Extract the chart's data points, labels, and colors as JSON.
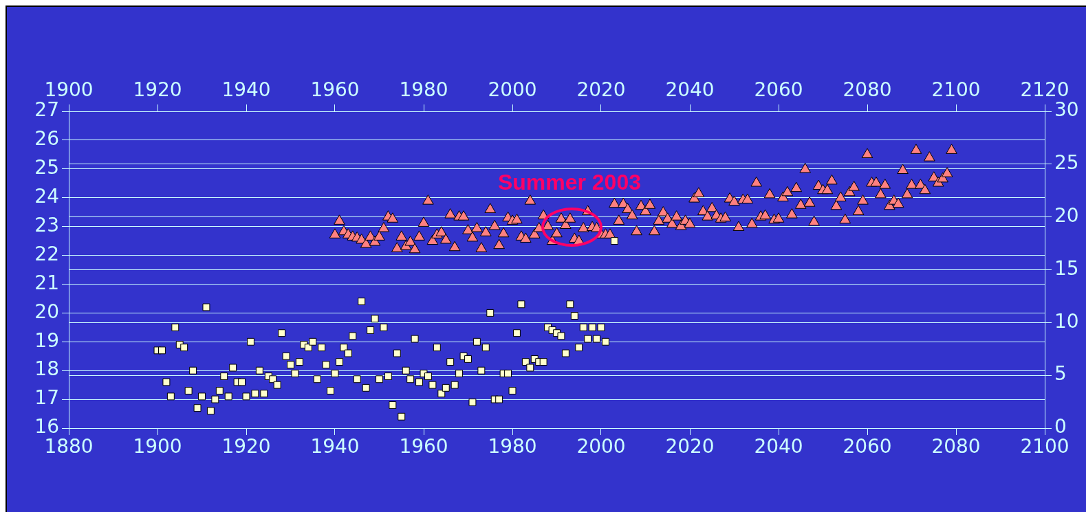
{
  "chart_data": {
    "type": "scatter",
    "annotations": [
      "Summer 2003"
    ],
    "grid": "y",
    "legend": false,
    "xlim": [
      1880,
      2100
    ],
    "xticks": [
      1880,
      1900,
      1920,
      1940,
      1960,
      1980,
      2000,
      2020,
      2040,
      2060,
      2080,
      2100
    ],
    "x2lim": [
      1900,
      2120
    ],
    "x2ticks": [
      1900,
      1920,
      1940,
      1960,
      1980,
      2000,
      2020,
      2040,
      2060,
      2080,
      2100,
      2120
    ],
    "ylim": [
      16,
      27
    ],
    "yticks": [
      16,
      17,
      18,
      19,
      20,
      21,
      22,
      23,
      24,
      25,
      26,
      27
    ],
    "y2lim": [
      0,
      30
    ],
    "y2ticks": [
      0,
      5,
      10,
      15,
      20,
      25,
      30
    ],
    "series": [
      {
        "color": "#ffffcc",
        "marker": "square",
        "x": [
          1900,
          1901,
          1902,
          1903,
          1904,
          1905,
          1906,
          1907,
          1908,
          1909,
          1910,
          1911,
          1912,
          1913,
          1914,
          1915,
          1916,
          1917,
          1918,
          1919,
          1920,
          1921,
          1922,
          1923,
          1924,
          1925,
          1926,
          1927,
          1928,
          1929,
          1930,
          1931,
          1932,
          1933,
          1934,
          1935,
          1936,
          1937,
          1938,
          1939,
          1940,
          1941,
          1942,
          1943,
          1944,
          1945,
          1946,
          1947,
          1948,
          1949,
          1950,
          1951,
          1952,
          1953,
          1954,
          1955,
          1956,
          1957,
          1958,
          1959,
          1960,
          1961,
          1962,
          1963,
          1964,
          1965,
          1966,
          1967,
          1968,
          1969,
          1970,
          1971,
          1972,
          1973,
          1974,
          1975,
          1976,
          1977,
          1978,
          1979,
          1980,
          1981,
          1982,
          1983,
          1984,
          1985,
          1986,
          1987,
          1988,
          1989,
          1990,
          1991,
          1992,
          1993,
          1994,
          1995,
          1996,
          1997,
          1998,
          1999,
          2000,
          2001,
          2003
        ],
        "values": [
          18.7,
          18.7,
          17.6,
          17.1,
          19.5,
          18.9,
          18.8,
          17.3,
          18.0,
          16.7,
          17.1,
          20.2,
          16.6,
          17.0,
          17.3,
          17.8,
          17.1,
          18.1,
          17.6,
          17.6,
          17.1,
          19.0,
          17.2,
          18.0,
          17.2,
          17.8,
          17.7,
          17.5,
          19.3,
          18.5,
          18.2,
          17.9,
          18.3,
          18.9,
          18.8,
          19.0,
          17.7,
          18.8,
          18.2,
          17.3,
          17.9,
          18.3,
          18.8,
          18.6,
          19.2,
          17.7,
          20.4,
          17.4,
          19.4,
          19.8,
          17.7,
          19.5,
          17.8,
          16.8,
          18.6,
          16.4,
          18.0,
          17.7,
          19.1,
          17.6,
          17.9,
          17.8,
          17.5,
          18.8,
          17.2,
          17.4,
          18.3,
          17.5,
          17.9,
          18.5,
          18.4,
          16.9,
          19.0,
          18.0,
          18.8,
          20.0,
          17.0,
          17.0,
          17.9,
          17.9,
          17.3,
          19.3,
          20.3,
          18.3,
          18.1,
          18.4,
          18.3,
          18.3,
          19.5,
          19.4,
          19.3,
          19.2,
          18.6,
          20.3,
          19.9,
          18.8,
          19.5,
          19.1,
          19.5,
          19.1,
          19.5,
          19.0,
          22.5
        ]
      },
      {
        "color": "#ff8080",
        "marker": "triangle",
        "axis": "y2",
        "x": [
          1940,
          1941,
          1942,
          1943,
          1944,
          1945,
          1946,
          1947,
          1948,
          1949,
          1950,
          1951,
          1952,
          1953,
          1954,
          1955,
          1956,
          1957,
          1958,
          1959,
          1960,
          1961,
          1962,
          1963,
          1964,
          1965,
          1966,
          1967,
          1968,
          1969,
          1970,
          1971,
          1972,
          1973,
          1974,
          1975,
          1976,
          1977,
          1978,
          1979,
          1980,
          1981,
          1982,
          1983,
          1984,
          1985,
          1986,
          1987,
          1988,
          1989,
          1990,
          1991,
          1992,
          1993,
          1994,
          1995,
          1996,
          1997,
          1998,
          1999,
          2000,
          2001,
          2002,
          2003,
          2004,
          2005,
          2006,
          2007,
          2008,
          2009,
          2010,
          2011,
          2012,
          2013,
          2014,
          2015,
          2016,
          2017,
          2018,
          2019,
          2020,
          2021,
          2022,
          2023,
          2024,
          2025,
          2026,
          2027,
          2028,
          2029,
          2030,
          2031,
          2032,
          2033,
          2034,
          2035,
          2036,
          2037,
          2038,
          2039,
          2040,
          2041,
          2042,
          2043,
          2044,
          2045,
          2046,
          2047,
          2048,
          2049,
          2050,
          2051,
          2052,
          2053,
          2054,
          2055,
          2056,
          2057,
          2058,
          2059,
          2060,
          2061,
          2062,
          2063,
          2064,
          2065,
          2066,
          2067,
          2068,
          2069,
          2070,
          2071,
          2072,
          2073,
          2074,
          2075,
          2076,
          2077,
          2078,
          2079
        ],
        "values": [
          18.3,
          19.6,
          18.6,
          18.3,
          18.1,
          18.0,
          17.8,
          17.4,
          18.1,
          17.6,
          18.1,
          18.9,
          20.0,
          19.8,
          17.0,
          18.1,
          17.2,
          17.6,
          16.9,
          18.1,
          19.4,
          21.5,
          17.7,
          18.3,
          18.5,
          17.8,
          20.2,
          17.1,
          20.0,
          20.0,
          18.7,
          18.0,
          18.9,
          17.0,
          18.5,
          20.7,
          19.1,
          17.3,
          18.4,
          19.9,
          19.6,
          19.7,
          18.1,
          17.9,
          21.5,
          18.3,
          18.9,
          20.1,
          19.1,
          17.7,
          18.4,
          19.8,
          19.2,
          19.8,
          17.9,
          17.7,
          18.9,
          20.5,
          19.0,
          18.9,
          18.3,
          18.3,
          18.3,
          21.2,
          19.6,
          21.2,
          20.7,
          20.1,
          18.6,
          21.0,
          20.5,
          21.1,
          18.6,
          19.6,
          20.4,
          19.8,
          19.3,
          20.0,
          19.1,
          19.6,
          19.3,
          21.7,
          22.2,
          20.5,
          20.0,
          20.8,
          20.1,
          19.8,
          19.9,
          21.7,
          21.4,
          19.0,
          21.6,
          21.6,
          19.3,
          23.2,
          20.0,
          20.1,
          22.1,
          19.7,
          19.8,
          21.8,
          22.3,
          20.2,
          22.7,
          21.1,
          24.5,
          21.3,
          19.5,
          22.9,
          22.5,
          22.5,
          23.4,
          21.0,
          21.8,
          19.7,
          22.3,
          22.8,
          20.5,
          21.5,
          25.9,
          23.2,
          23.2,
          22.1,
          23.0,
          21.0,
          21.5,
          21.2,
          24.4,
          22.1,
          23.0,
          26.3,
          23.0,
          22.5,
          25.6,
          23.7,
          23.2,
          23.6,
          24.1,
          26.3
        ]
      }
    ]
  }
}
